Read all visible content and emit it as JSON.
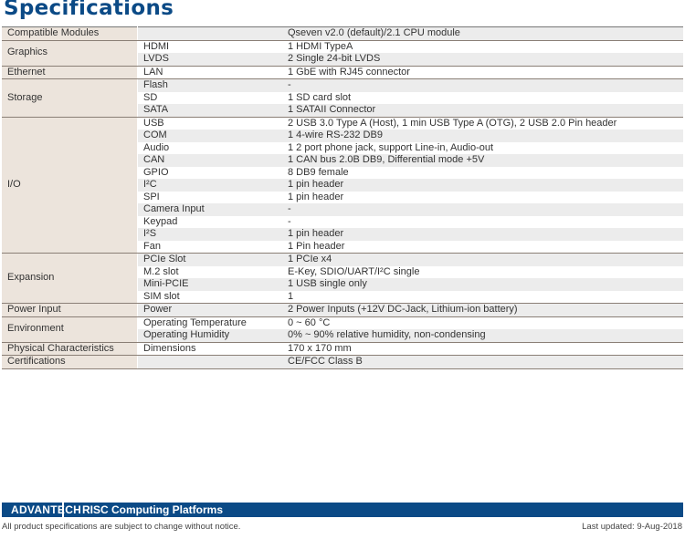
{
  "title": "Specifications",
  "groups": [
    {
      "label": "Compatible Modules",
      "rows": [
        [
          "",
          "Qseven v2.0 (default)/2.1 CPU module"
        ]
      ]
    },
    {
      "label": "Graphics",
      "rows": [
        [
          "HDMI",
          "1 HDMI TypeA"
        ],
        [
          "LVDS",
          "2 Single 24-bit LVDS"
        ]
      ]
    },
    {
      "label": "Ethernet",
      "rows": [
        [
          "LAN",
          "1 GbE with RJ45 connector"
        ]
      ]
    },
    {
      "label": "Storage",
      "rows": [
        [
          "Flash",
          "-"
        ],
        [
          "SD",
          "1 SD card slot"
        ],
        [
          "SATA",
          "1 SATAII Connector"
        ]
      ]
    },
    {
      "label": "I/O",
      "rows": [
        [
          "USB",
          "2 USB 3.0 Type A (Host), 1 min USB Type A (OTG), 2 USB 2.0 Pin header"
        ],
        [
          "COM",
          "1 4-wire RS-232 DB9"
        ],
        [
          "Audio",
          "1 2 port phone jack, support Line-in, Audio-out"
        ],
        [
          "CAN",
          "1 CAN bus 2.0B DB9, Differential mode +5V"
        ],
        [
          "GPIO",
          "8 DB9 female"
        ],
        [
          "I²C",
          "1 pin header"
        ],
        [
          "SPI",
          "1 pin header"
        ],
        [
          "Camera Input",
          "-"
        ],
        [
          "Keypad",
          "-"
        ],
        [
          "I²S",
          "1 pin header"
        ],
        [
          "Fan",
          "1 Pin header"
        ]
      ]
    },
    {
      "label": "Expansion",
      "rows": [
        [
          "PCIe Slot",
          "1 PCIe x4"
        ],
        [
          "M.2 slot",
          "E-Key, SDIO/UART/I²C single"
        ],
        [
          "Mini-PCIE",
          "1 USB single only"
        ],
        [
          "SIM slot",
          "1"
        ]
      ]
    },
    {
      "label": "Power Input",
      "rows": [
        [
          "Power",
          "2 Power Inputs (+12V DC-Jack, Lithium-ion battery)"
        ]
      ]
    },
    {
      "label": "Environment",
      "rows": [
        [
          "Operating Temperature",
          "0 ~ 60 °C"
        ],
        [
          "Operating Humidity",
          "0% ~ 90% relative humidity, non-condensing"
        ]
      ]
    },
    {
      "label": "Physical Characteristics",
      "rows": [
        [
          "Dimensions",
          "170 x 170 mm"
        ]
      ]
    },
    {
      "label": "Certifications",
      "rows": [
        [
          "",
          "CE/FCC Class B"
        ]
      ]
    }
  ],
  "footer": {
    "brand": "ADVANTECH",
    "platform": "RISC Computing Platforms",
    "notice": "All product specifications are subject to change without notice.",
    "updated": "Last updated: 9-Aug-2018"
  }
}
